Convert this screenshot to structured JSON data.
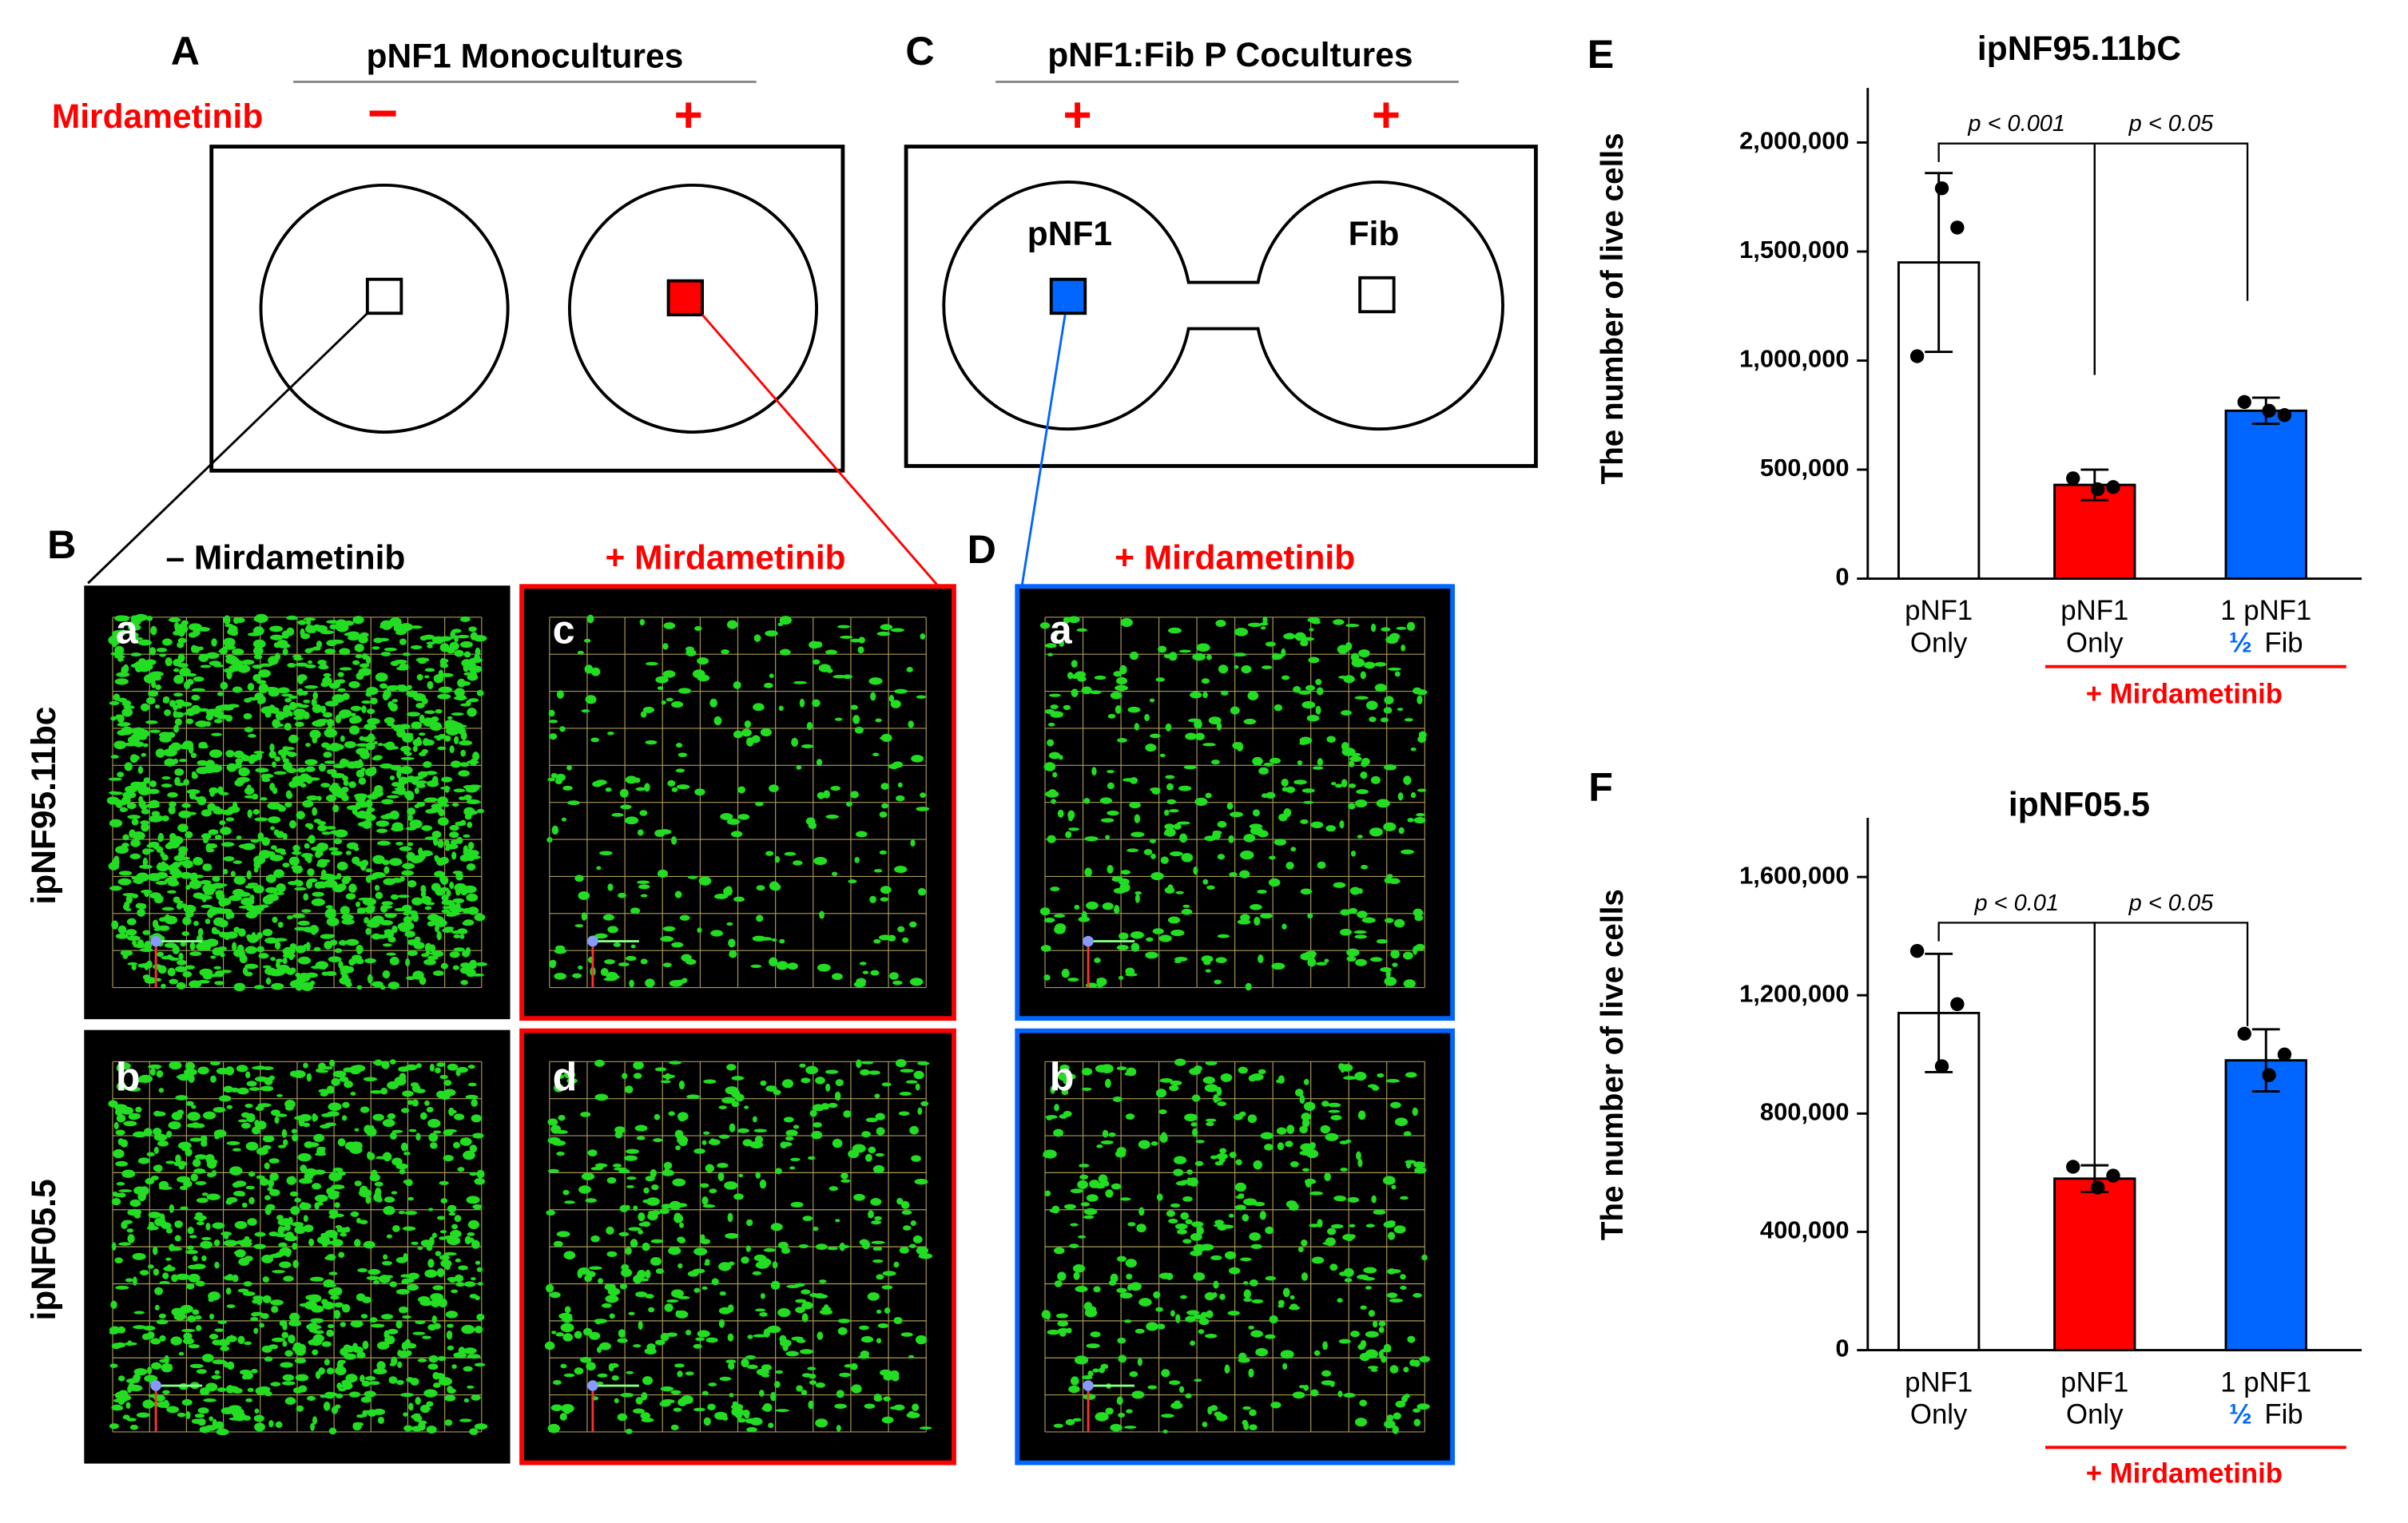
{
  "panel_labels": [
    "A",
    "B",
    "C",
    "D",
    "E",
    "F"
  ],
  "diagram_a": {
    "title": "pNF1 Monocultures",
    "treatment": "Mirdametinib",
    "signs": [
      "−",
      "+"
    ]
  },
  "diagram_c": {
    "title": "pNF1:Fib P Cocultures",
    "signs": [
      "+",
      "+"
    ],
    "wells": [
      "pNF1",
      "Fib"
    ]
  },
  "panel_b": {
    "headers": [
      "– Mirdametinib",
      "+ Mirdametinib"
    ],
    "rows": [
      "ipNF95.11bc",
      "ipNF05.5"
    ],
    "image_labels": [
      "a",
      "c",
      "b",
      "d"
    ]
  },
  "panel_d": {
    "header": "+ Mirdametinib",
    "image_labels": [
      "a",
      "b"
    ]
  },
  "chart_data": [
    {
      "type": "bar",
      "title": "ipNF95.11bC",
      "y_label": "The number of live cells",
      "categories": [
        [
          "pNF1",
          "Only"
        ],
        [
          "pNF1",
          "Only"
        ],
        [
          "1 pNF1",
          "½",
          "Fib"
        ]
      ],
      "values": [
        1450000,
        430000,
        770000
      ],
      "errors": [
        410000,
        70000,
        60000
      ],
      "points": [
        [
          1020000,
          1610000,
          1790000
        ],
        [
          460000,
          420000,
          410000
        ],
        [
          810000,
          750000,
          770000
        ]
      ],
      "colors": [
        "#ffffff",
        "#ff0000",
        "#0066ff"
      ],
      "ylim": [
        0,
        2250000
      ],
      "yticks": [
        0,
        {
          "value": 500000,
          "label": "500,000"
        },
        {
          "value": 1000000,
          "label": "1,000,000"
        },
        {
          "value": 1500000,
          "label": "1,500,000"
        },
        {
          "value": 2000000,
          "label": "2,000,000"
        }
      ],
      "annotations": [
        "p < 0.001",
        "p < 0.05"
      ],
      "group_label": "+ Mirdametinib"
    },
    {
      "type": "bar",
      "title": "ipNF05.5",
      "y_label": "The number of live cells",
      "categories": [
        [
          "pNF1",
          "Only"
        ],
        [
          "pNF1",
          "Only"
        ],
        [
          "1 pNF1",
          "½",
          "Fib"
        ]
      ],
      "values": [
        1140000,
        580000,
        980000
      ],
      "errors": [
        200000,
        45000,
        105000
      ],
      "points": [
        [
          1350000,
          1170000,
          960000
        ],
        [
          620000,
          590000,
          550000
        ],
        [
          1070000,
          1000000,
          930000
        ]
      ],
      "colors": [
        "#ffffff",
        "#ff0000",
        "#0066ff"
      ],
      "ylim": [
        0,
        1800000
      ],
      "yticks": [
        0,
        {
          "value": 400000,
          "label": "400,000"
        },
        {
          "value": 800000,
          "label": "800,000"
        },
        {
          "value": 1200000,
          "label": "1,200,000"
        },
        {
          "value": 1600000,
          "label": "1,600,000"
        }
      ],
      "annotations": [
        "p < 0.01",
        "p < 0.05"
      ],
      "group_label": "+ Mirdametinib"
    }
  ]
}
